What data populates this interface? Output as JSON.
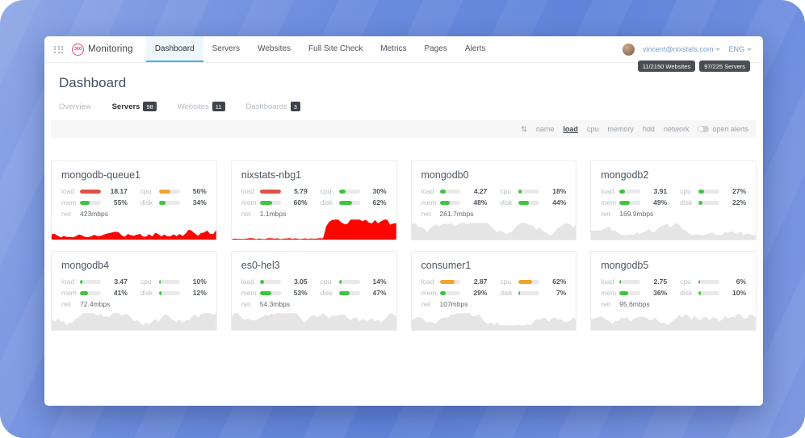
{
  "navbar": {
    "logo": {
      "circle": "360",
      "name": "Monitoring"
    },
    "items": [
      {
        "label": "Dashboard",
        "active": true
      },
      {
        "label": "Servers",
        "active": false
      },
      {
        "label": "Websites",
        "active": false
      },
      {
        "label": "Full Site Check",
        "active": false
      },
      {
        "label": "Metrics",
        "active": false
      },
      {
        "label": "Pages",
        "active": false
      },
      {
        "label": "Alerts",
        "active": false
      }
    ],
    "user": {
      "email": "vincent@nixstats.com",
      "language": "ENG"
    }
  },
  "header": {
    "title": "Dashboard",
    "badges": [
      {
        "label": "11/2150 Websites"
      },
      {
        "label": "97/225 Servers"
      }
    ]
  },
  "tabs": [
    {
      "label": "Overview",
      "count": "",
      "active": false
    },
    {
      "label": "Servers",
      "count": "98",
      "active": true
    },
    {
      "label": "Websites",
      "count": "11",
      "active": false
    },
    {
      "label": "Dashboards",
      "count": "3",
      "active": false
    }
  ],
  "sortbar": {
    "sort_icon": "sort-arrows-icon",
    "options": [
      {
        "label": "name",
        "active": false
      },
      {
        "label": "load",
        "active": true
      },
      {
        "label": "cpu",
        "active": false
      },
      {
        "label": "memory",
        "active": false
      },
      {
        "label": "hdd",
        "active": false
      },
      {
        "label": "network",
        "active": false
      }
    ],
    "alerts_toggle_label": "open alerts"
  },
  "colors": {
    "green": "#3fc53f",
    "orange": "#f0a32e",
    "red": "#dd5248",
    "spark_red": "#fb0702",
    "spark_gray": "#e5e5e5",
    "accent_blue": "#45b1e8"
  },
  "metric_labels": {
    "load": "load",
    "cpu": "cpu",
    "mem": "mem",
    "disk": "disk",
    "net": "net"
  },
  "servers": [
    {
      "name": "mongodb-queue1",
      "load": {
        "value": "18.17",
        "pct": 100,
        "color": "red"
      },
      "cpu": {
        "value": "56%",
        "pct": 56,
        "color": "orange"
      },
      "mem": {
        "value": "55%",
        "pct": 48,
        "color": "green"
      },
      "disk": {
        "value": "34%",
        "pct": 32,
        "color": "green"
      },
      "net": {
        "value": "423mbps"
      },
      "spark": {
        "color": "spark_red",
        "pattern": "full",
        "seed": 17
      }
    },
    {
      "name": "nixstats-nbg1",
      "load": {
        "value": "5.79",
        "pct": 100,
        "color": "red"
      },
      "cpu": {
        "value": "30%",
        "pct": 32,
        "color": "green"
      },
      "mem": {
        "value": "60%",
        "pct": 58,
        "color": "green"
      },
      "disk": {
        "value": "62%",
        "pct": 64,
        "color": "green"
      },
      "net": {
        "value": "1.1mbps"
      },
      "spark": {
        "color": "spark_red",
        "pattern": "right",
        "seed": 23
      }
    },
    {
      "name": "mongodb0",
      "load": {
        "value": "4.27",
        "pct": 30,
        "color": "green"
      },
      "cpu": {
        "value": "18%",
        "pct": 15,
        "color": "green"
      },
      "mem": {
        "value": "48%",
        "pct": 50,
        "color": "green"
      },
      "disk": {
        "value": "44%",
        "pct": 48,
        "color": "green"
      },
      "net": {
        "value": "261.7mbps"
      },
      "spark": {
        "color": "spark_gray",
        "pattern": "gray",
        "seed": 31
      }
    },
    {
      "name": "mongodb2",
      "load": {
        "value": "3.91",
        "pct": 28,
        "color": "green"
      },
      "cpu": {
        "value": "27%",
        "pct": 25,
        "color": "green"
      },
      "mem": {
        "value": "49%",
        "pct": 50,
        "color": "green"
      },
      "disk": {
        "value": "22%",
        "pct": 20,
        "color": "green"
      },
      "net": {
        "value": "169.9mbps"
      },
      "spark": {
        "color": "spark_gray",
        "pattern": "gray",
        "seed": 47
      }
    },
    {
      "name": "mongodb4",
      "load": {
        "value": "3.47",
        "pct": 10,
        "color": "green"
      },
      "cpu": {
        "value": "10%",
        "pct": 10,
        "color": "green"
      },
      "mem": {
        "value": "41%",
        "pct": 40,
        "color": "green"
      },
      "disk": {
        "value": "12%",
        "pct": 12,
        "color": "green"
      },
      "net": {
        "value": "72.4mbps"
      },
      "spark": {
        "color": "spark_gray",
        "pattern": "gray",
        "seed": 53
      }
    },
    {
      "name": "es0-hel3",
      "load": {
        "value": "3.05",
        "pct": 22,
        "color": "green"
      },
      "cpu": {
        "value": "14%",
        "pct": 13,
        "color": "green"
      },
      "mem": {
        "value": "53%",
        "pct": 55,
        "color": "green"
      },
      "disk": {
        "value": "47%",
        "pct": 50,
        "color": "green"
      },
      "net": {
        "value": "54.3mbps"
      },
      "spark": {
        "color": "spark_gray",
        "pattern": "gray",
        "seed": 61
      }
    },
    {
      "name": "consumer1",
      "load": {
        "value": "2.87",
        "pct": 70,
        "color": "orange"
      },
      "cpu": {
        "value": "62%",
        "pct": 65,
        "color": "orange"
      },
      "mem": {
        "value": "29%",
        "pct": 28,
        "color": "green"
      },
      "disk": {
        "value": "7%",
        "pct": 7,
        "color": "green"
      },
      "net": {
        "value": "107mbps"
      },
      "spark": {
        "color": "spark_gray",
        "pattern": "gray",
        "seed": 71
      }
    },
    {
      "name": "mongodb5",
      "load": {
        "value": "2.75",
        "pct": 8,
        "color": "green"
      },
      "cpu": {
        "value": "6%",
        "pct": 6,
        "color": "green"
      },
      "mem": {
        "value": "36%",
        "pct": 42,
        "color": "green"
      },
      "disk": {
        "value": "10%",
        "pct": 10,
        "color": "green"
      },
      "net": {
        "value": "95.6mbps"
      },
      "spark": {
        "color": "spark_gray",
        "pattern": "gray",
        "seed": 83
      }
    }
  ]
}
